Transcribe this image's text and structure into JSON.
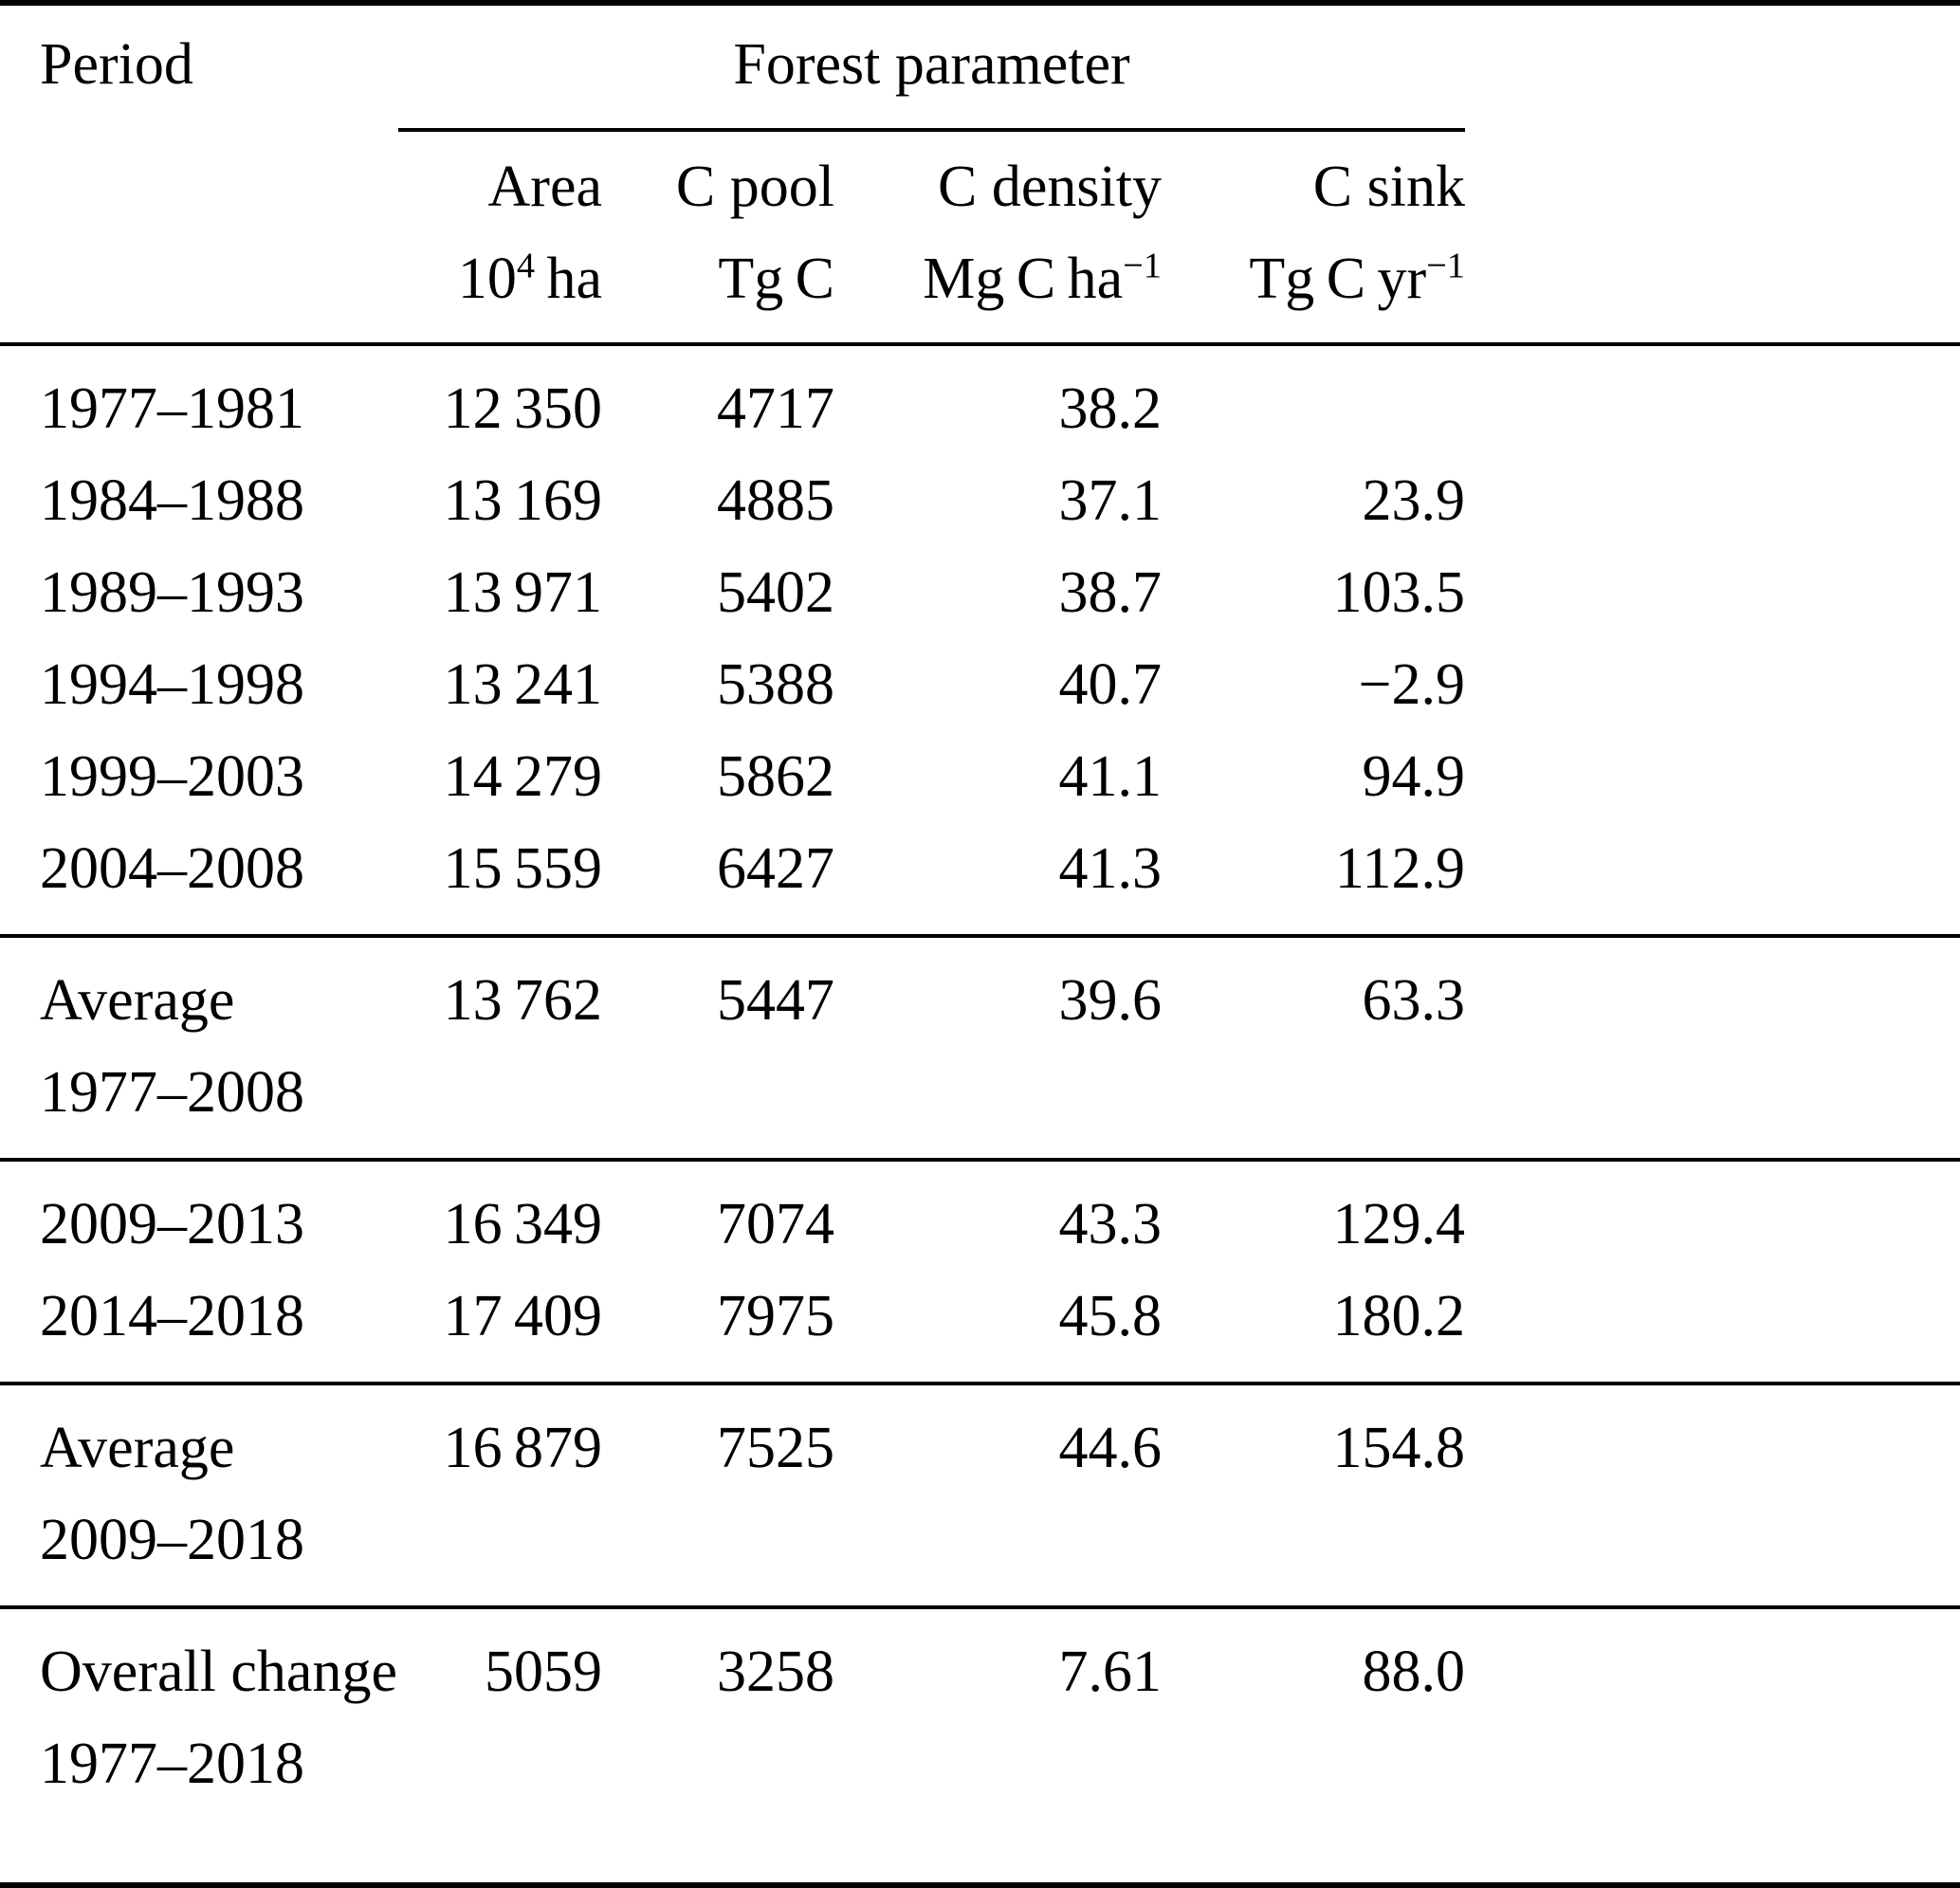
{
  "table": {
    "header": {
      "period_label": "Period",
      "group_label": "Forest parameter",
      "columns": [
        {
          "label": "Area",
          "unit_main": "10",
          "unit_sup": "4",
          "unit_tail": " ha"
        },
        {
          "label": "C pool",
          "unit_main": "Tg C",
          "unit_sup": "",
          "unit_tail": ""
        },
        {
          "label": "C density",
          "unit_main": "Mg C ha",
          "unit_sup": "−1",
          "unit_tail": ""
        },
        {
          "label": "C sink",
          "unit_main": "Tg C yr",
          "unit_sup": "−1",
          "unit_tail": ""
        }
      ]
    },
    "sections": [
      {
        "rows": [
          {
            "p1": "1977–1981",
            "p2": "",
            "area": "12 350",
            "cpool": "4717",
            "cdensity": "38.2",
            "csink": ""
          },
          {
            "p1": "1984–1988",
            "p2": "",
            "area": "13 169",
            "cpool": "4885",
            "cdensity": "37.1",
            "csink": "23.9"
          },
          {
            "p1": "1989–1993",
            "p2": "",
            "area": "13 971",
            "cpool": "5402",
            "cdensity": "38.7",
            "csink": "103.5"
          },
          {
            "p1": "1994–1998",
            "p2": "",
            "area": "13 241",
            "cpool": "5388",
            "cdensity": "40.7",
            "csink": "−2.9"
          },
          {
            "p1": "1999–2003",
            "p2": "",
            "area": "14 279",
            "cpool": "5862",
            "cdensity": "41.1",
            "csink": "94.9"
          },
          {
            "p1": "2004–2008",
            "p2": "",
            "area": "15 559",
            "cpool": "6427",
            "cdensity": "41.3",
            "csink": "112.9"
          }
        ]
      },
      {
        "rows": [
          {
            "p1": "Average",
            "p2": "1977–2008",
            "area": "13 762",
            "cpool": "5447",
            "cdensity": "39.6",
            "csink": "63.3"
          }
        ]
      },
      {
        "rows": [
          {
            "p1": "2009–2013",
            "p2": "",
            "area": "16 349",
            "cpool": "7074",
            "cdensity": "43.3",
            "csink": "129.4"
          },
          {
            "p1": "2014–2018",
            "p2": "",
            "area": "17 409",
            "cpool": "7975",
            "cdensity": "45.8",
            "csink": "180.2"
          }
        ]
      },
      {
        "rows": [
          {
            "p1": "Average",
            "p2": "2009–2018",
            "area": "16 879",
            "cpool": "7525",
            "cdensity": "44.6",
            "csink": "154.8"
          }
        ]
      },
      {
        "rows": [
          {
            "p1": "Overall change",
            "p2": "1977–2018",
            "area": "5059",
            "cpool": "3258",
            "cdensity": "7.61",
            "csink": "88.0"
          }
        ]
      }
    ]
  }
}
